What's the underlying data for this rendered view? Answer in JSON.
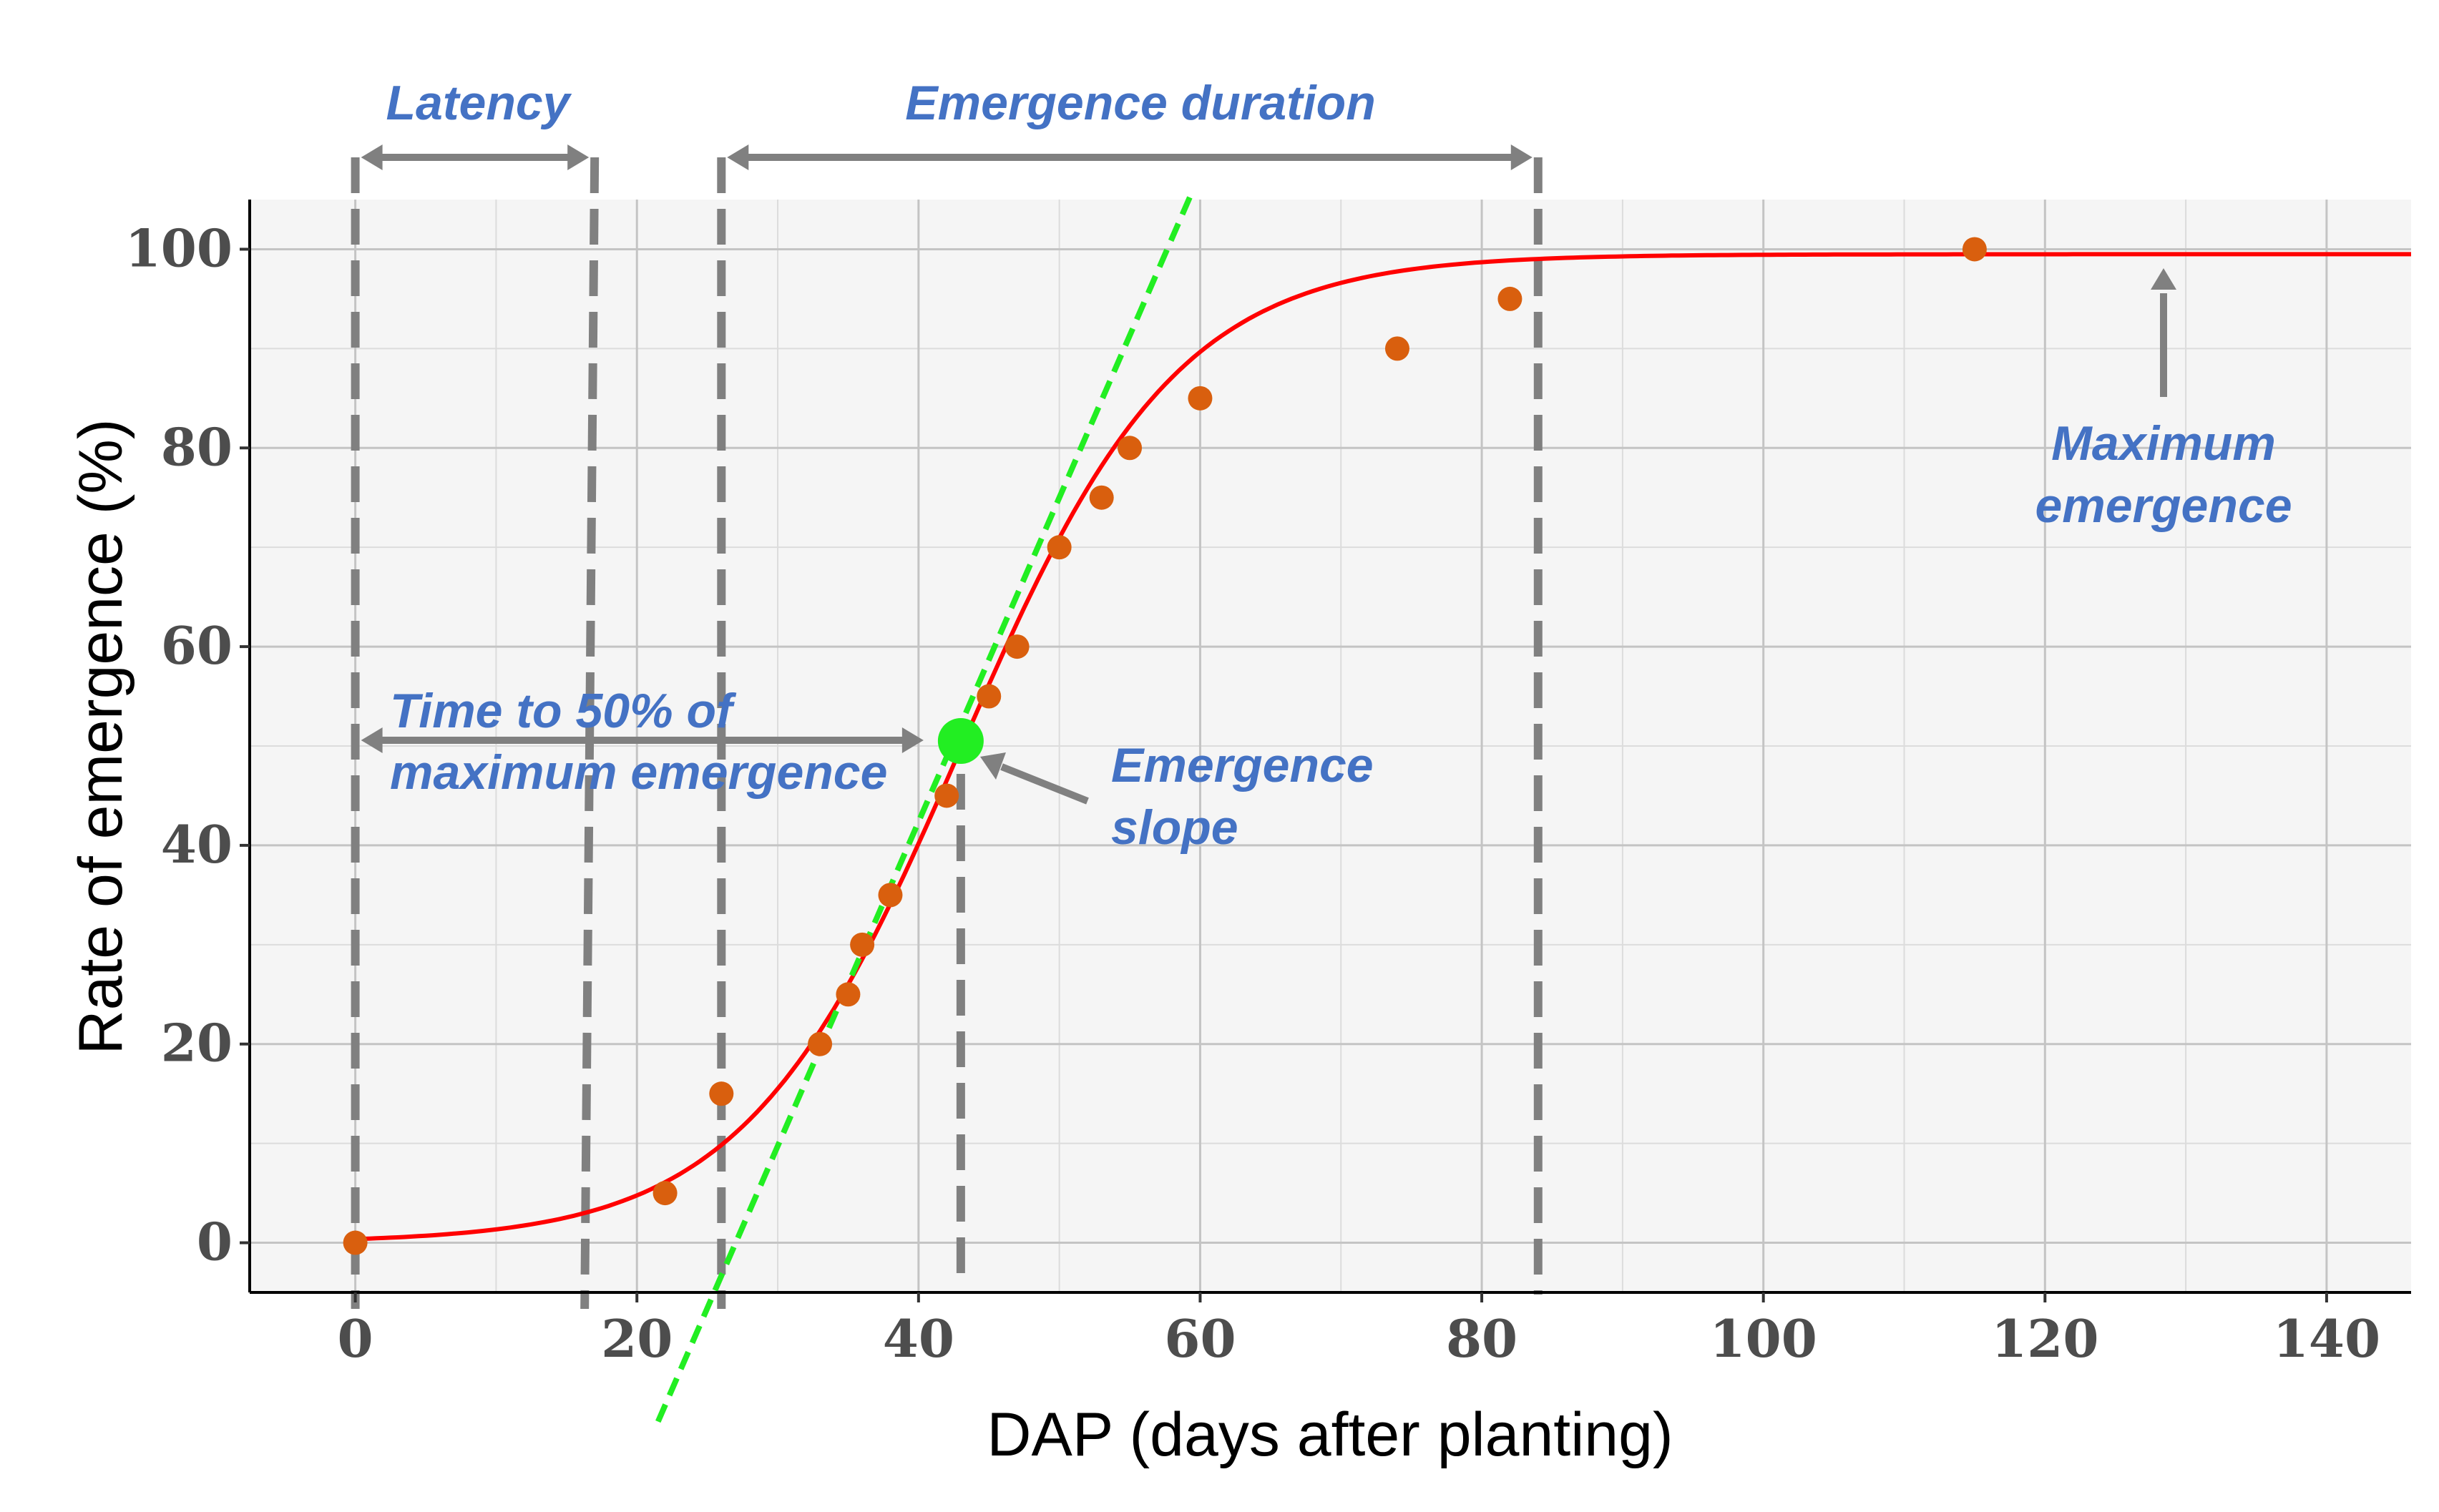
{
  "chart_data": {
    "type": "scatter",
    "xlabel": "DAP (days after planting)",
    "ylabel": "Rate of emergence (%)",
    "xlim": [
      -7.5,
      146
    ],
    "ylim": [
      -5,
      105
    ],
    "x_ticks": [
      0,
      20,
      40,
      60,
      80,
      100,
      120,
      140
    ],
    "y_ticks": [
      0,
      20,
      40,
      60,
      80,
      100
    ],
    "grid": true,
    "series": [
      {
        "type": "scatter",
        "color": "#d95f0e",
        "points": [
          {
            "x": 0,
            "y": 0
          },
          {
            "x": 22,
            "y": 5
          },
          {
            "x": 26,
            "y": 15
          },
          {
            "x": 33,
            "y": 20
          },
          {
            "x": 35,
            "y": 25
          },
          {
            "x": 36,
            "y": 30
          },
          {
            "x": 38,
            "y": 35
          },
          {
            "x": 42,
            "y": 45
          },
          {
            "x": 45,
            "y": 55
          },
          {
            "x": 47,
            "y": 60
          },
          {
            "x": 50,
            "y": 70
          },
          {
            "x": 53,
            "y": 75
          },
          {
            "x": 55,
            "y": 80
          },
          {
            "x": 60,
            "y": 85
          },
          {
            "x": 74,
            "y": 90
          },
          {
            "x": 82,
            "y": 95
          },
          {
            "x": 115,
            "y": 100
          }
        ]
      },
      {
        "type": "line",
        "color": "#ff0000",
        "model": "logistic",
        "asymptote": 99.5,
        "midpoint_x": 43,
        "rate": 0.13,
        "x_range": [
          0,
          146
        ]
      },
      {
        "type": "line",
        "color": "#22ee22",
        "dashed": true,
        "from": {
          "x": 21.5,
          "y": -18
        },
        "to": {
          "x": 59.5,
          "y": 106
        }
      }
    ],
    "midpoint_marker": {
      "x": 43,
      "y": 50.5,
      "color": "#22ee22"
    },
    "reference_lines_x": [
      0,
      17,
      26,
      43,
      84
    ],
    "annotations": {
      "latency": "Latency",
      "emergence_duration": "Emergence duration",
      "time_to_50_line1": "Time to 50% of",
      "time_to_50_line2": "maximum emergence",
      "slope_line1": "Emergence",
      "slope_line2": "slope",
      "max_line1": "Maximum",
      "max_line2": "emergence"
    },
    "annotation_color": "#4472c4",
    "reference_color": "#808080"
  }
}
